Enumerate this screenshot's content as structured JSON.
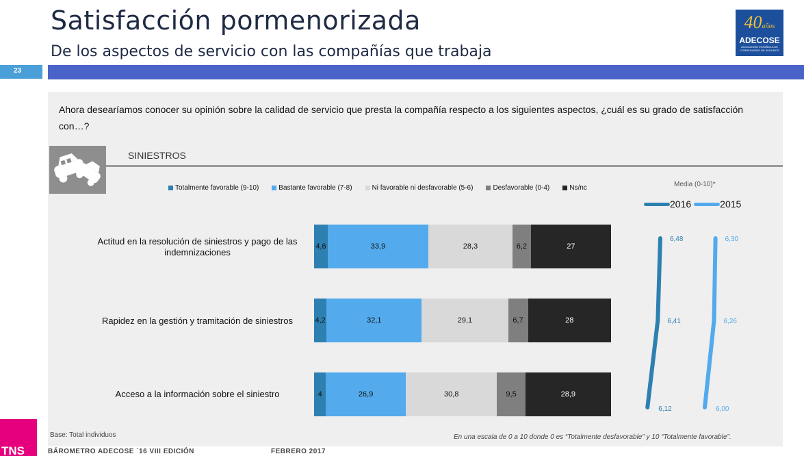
{
  "header": {
    "title": "Satisfacción pormenorizada",
    "subtitle": "De los aspectos de servicio con las compañías que trabaja",
    "page_number": "23",
    "logo": {
      "big": "40",
      "small": "años",
      "name": "ADECOSE",
      "tagline": "ASOCIACIÓN ESPAÑOLA DE CORREDURÍAS DE SEGUROS"
    }
  },
  "question": "Ahora desearíamos conocer su opinión sobre la calidad de servicio que presta la compañía respecto a los siguientes aspectos, ¿cuál es su grado de satisfacción con…?",
  "section": {
    "title": "SINIESTROS",
    "icon": "car-crash-icon"
  },
  "legend": [
    {
      "label": "Totalmente favorable (9-10)",
      "color": "#2e80b0"
    },
    {
      "label": "Bastante favorable (7-8)",
      "color": "#53aaec"
    },
    {
      "label": "Ni favorable ni desfavorable (5-6)",
      "color": "#d9d9d9"
    },
    {
      "label": "Desfavorable (0-4)",
      "color": "#7f7f7f"
    },
    {
      "label": "Ns/nc",
      "color": "#262626"
    }
  ],
  "chart_data": [
    {
      "type": "bar",
      "stacked": true,
      "orientation": "horizontal",
      "categories": [
        "Actitud en la resolución de siniestros y pago de las indemnizaciones",
        "Rapidez en la gestión y tramitación de siniestros",
        "Acceso a la información sobre el siniestro"
      ],
      "series": [
        {
          "name": "Totalmente favorable (9-10)",
          "color": "#2e80b0",
          "values": [
            4.6,
            4.2,
            4
          ]
        },
        {
          "name": "Bastante favorable (7-8)",
          "color": "#53aaec",
          "values": [
            33.9,
            32.1,
            26.9
          ]
        },
        {
          "name": "Ni favorable ni desfavorable (5-6)",
          "color": "#d9d9d9",
          "values": [
            28.3,
            29.1,
            30.8
          ]
        },
        {
          "name": "Desfavorable (0-4)",
          "color": "#7f7f7f",
          "values": [
            6.2,
            6.7,
            9.5
          ]
        },
        {
          "name": "Ns/nc",
          "color": "#262626",
          "values": [
            27,
            28,
            28.9
          ]
        }
      ],
      "value_labels": [
        [
          "4,6",
          "33,9",
          "28,3",
          "6,2",
          "27"
        ],
        [
          "4,2",
          "32,1",
          "29,1",
          "6,7",
          "28"
        ],
        [
          "4",
          "26,9",
          "30,8",
          "9,5",
          "28,9"
        ]
      ]
    },
    {
      "type": "line",
      "title": "Media (0-10)*",
      "series": [
        {
          "name": "2016",
          "color": "#2e80b0",
          "values": [
            6.48,
            6.41,
            6.12
          ],
          "labels": [
            "6,48",
            "6,41",
            "6,12"
          ]
        },
        {
          "name": "2015",
          "color": "#53aaec",
          "values": [
            6.3,
            6.26,
            6.0
          ],
          "labels": [
            "6,30",
            "6,26",
            "6,00"
          ]
        }
      ]
    }
  ],
  "footer": {
    "base": "Base: Total individuos",
    "note": "En una escala de 0 a 10 donde 0 es “Totalmente desfavorable” y 10 “Totalmente favorable”.",
    "barometer": "BÁROMETRO ADECOSE ´16  VIII EDICIÓN",
    "date": "FEBRERO 2017",
    "brand": "TNS"
  }
}
